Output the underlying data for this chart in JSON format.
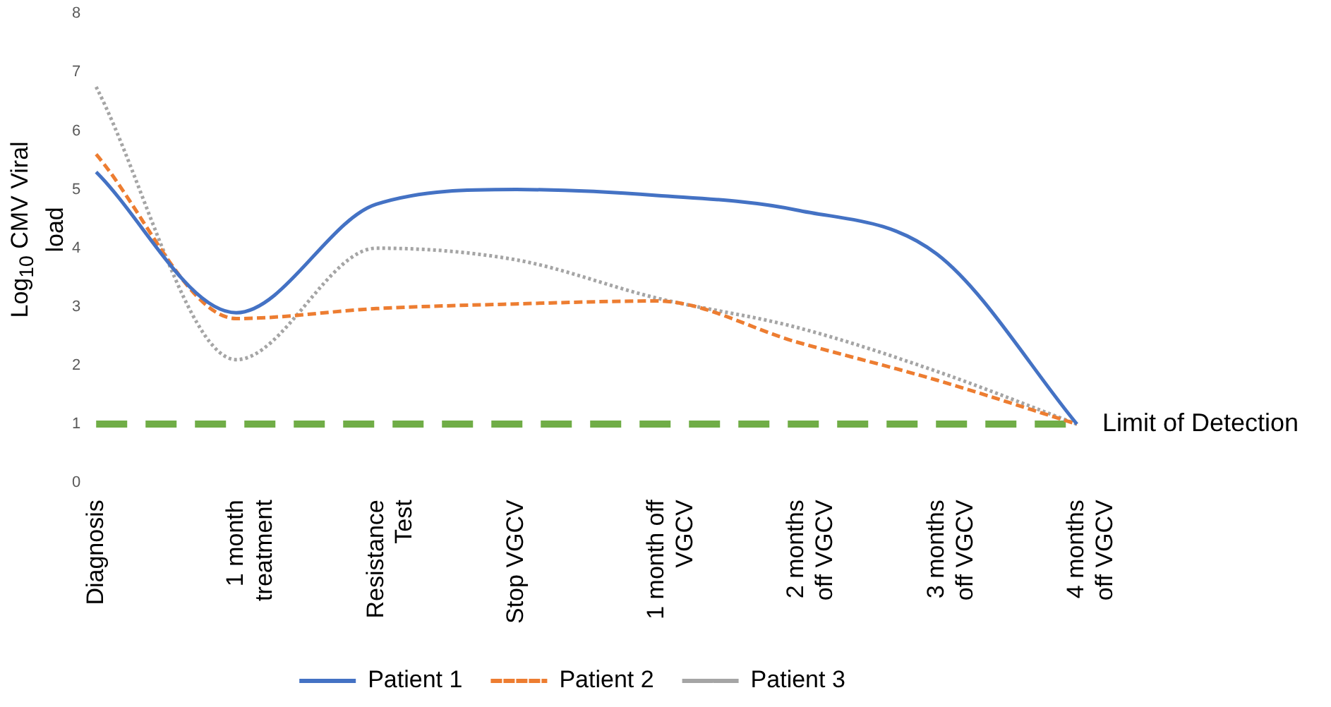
{
  "chart_data": {
    "type": "line",
    "ylabel": "Log$_{10}$ CMV  Viral load",
    "categories": [
      "Diagnosis",
      "1 month\ntreatment",
      "Resistance\nTest",
      "Stop VGCV",
      "1 month off\nVGCV",
      "2 months\noff VGCV",
      "3 months\noff VGCV",
      "4 months\noff VGCV"
    ],
    "series": [
      {
        "name": "Patient 1",
        "color": "#4472c4",
        "line_style": "solid",
        "values": [
          5.3,
          2.9,
          4.75,
          5.0,
          4.9,
          4.65,
          3.9,
          1.0
        ]
      },
      {
        "name": "Patient 2",
        "color": "#ed7d31",
        "line_style": "dashed",
        "values": [
          5.6,
          2.8,
          2.97,
          3.05,
          3.1,
          2.4,
          1.75,
          1.0
        ]
      },
      {
        "name": "Patient 3",
        "color": "#a5a5a5",
        "line_style": "dotted",
        "values": [
          6.75,
          2.1,
          4.0,
          3.8,
          3.15,
          2.65,
          1.9,
          1.0
        ]
      }
    ],
    "ylim": [
      0,
      8
    ],
    "yticks": [
      0,
      1,
      2,
      3,
      4,
      5,
      6,
      7,
      8
    ],
    "ref_lines": [
      {
        "axis": "y",
        "value": 1,
        "label": "Limit of Detection",
        "color": "#70ad47",
        "line_style": "dashed"
      }
    ],
    "grid": false,
    "legend": "bottom",
    "marker": "none"
  }
}
